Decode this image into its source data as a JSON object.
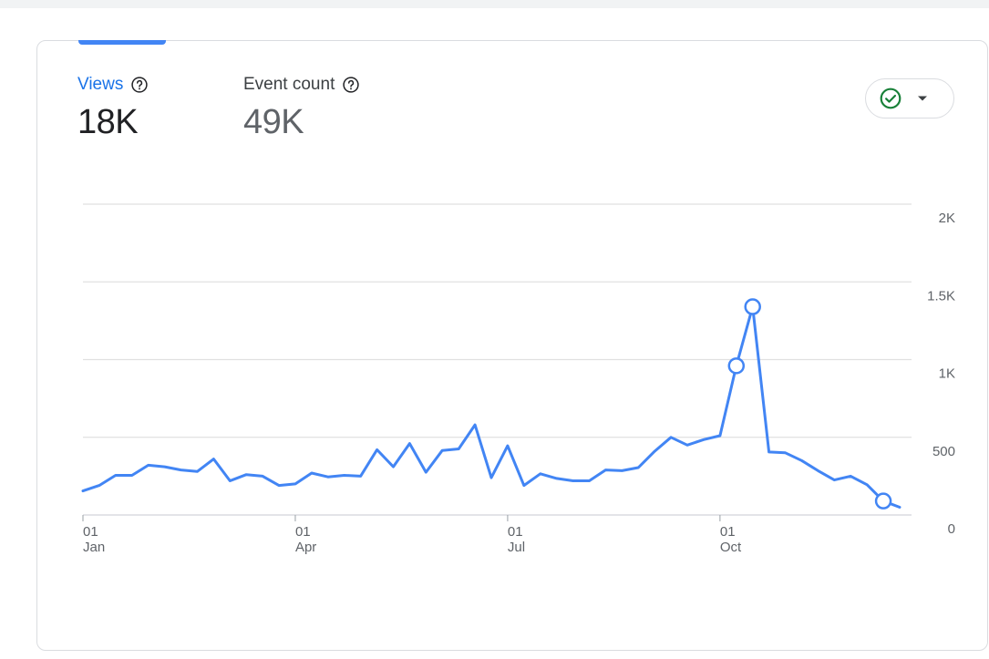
{
  "metrics": [
    {
      "label": "Views",
      "value": "18K",
      "active": true
    },
    {
      "label": "Event count",
      "value": "49K",
      "active": false
    }
  ],
  "icons": {
    "help": "help-circle-icon",
    "status": "check-circle-icon",
    "dropdown": "caret-down-icon"
  },
  "colors": {
    "accent": "#1a73e8",
    "line": "#4285f4",
    "status_green": "#188038",
    "grid": "#e0e0e0",
    "muted_text": "#5f6368"
  },
  "chart_data": {
    "type": "line",
    "x_tick_labels": [
      {
        "day": "01",
        "month": "Jan",
        "week_index": 0
      },
      {
        "day": "01",
        "month": "Apr",
        "week_index": 13
      },
      {
        "day": "01",
        "month": "Jul",
        "week_index": 26
      },
      {
        "day": "01",
        "month": "Oct",
        "week_index": 39
      }
    ],
    "y_ticks": [
      0,
      500,
      1000,
      1500,
      2000
    ],
    "y_tick_labels": [
      "0",
      "500",
      "1K",
      "1.5K",
      "2K"
    ],
    "ylim": [
      0,
      2000
    ],
    "series": [
      {
        "values": [
          155,
          190,
          255,
          255,
          320,
          310,
          290,
          280,
          360,
          220,
          260,
          250,
          190,
          200,
          270,
          245,
          255,
          250,
          420,
          310,
          460,
          275,
          415,
          425,
          580,
          240,
          445,
          190,
          265,
          235,
          220,
          220,
          290,
          285,
          305,
          410,
          500,
          450,
          485,
          510,
          960,
          1340,
          405,
          400,
          350,
          285,
          225,
          250,
          195,
          90,
          50
        ],
        "markers": [
          40,
          41,
          49
        ]
      }
    ],
    "grid": true,
    "legend": "none"
  }
}
